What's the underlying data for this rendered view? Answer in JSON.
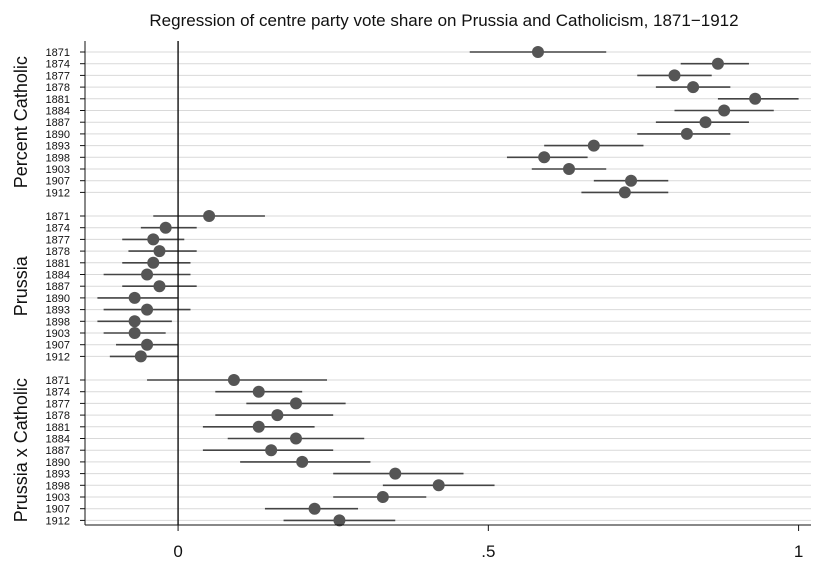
{
  "chart_data": {
    "type": "scatter",
    "subtype": "coefficient-plot-with-confidence-intervals",
    "title": "Regression of centre party vote share on Prussia and Catholicism, 1871−1912",
    "xlabel": "",
    "ylabel": "",
    "xlim": [
      -0.15,
      1.02
    ],
    "xticks": [
      0,
      0.5,
      1
    ],
    "xtick_labels": [
      "0",
      ".5",
      "1"
    ],
    "reference_line": 0,
    "grid": "horizontal",
    "colors": {
      "marker": "#555555",
      "ci_line": "#444444",
      "grid": "#d9d9d9",
      "axis": "#111111"
    },
    "years": [
      "1871",
      "1874",
      "1877",
      "1878",
      "1881",
      "1884",
      "1887",
      "1890",
      "1893",
      "1898",
      "1903",
      "1907",
      "1912"
    ],
    "groups": [
      {
        "name": "Percent Catholic",
        "estimates": [
          0.58,
          0.87,
          0.8,
          0.83,
          0.93,
          0.88,
          0.85,
          0.82,
          0.67,
          0.59,
          0.63,
          0.73,
          0.72
        ],
        "ci_low": [
          0.47,
          0.81,
          0.74,
          0.77,
          0.87,
          0.8,
          0.77,
          0.74,
          0.59,
          0.53,
          0.57,
          0.67,
          0.65
        ],
        "ci_high": [
          0.69,
          0.92,
          0.86,
          0.89,
          1.0,
          0.96,
          0.92,
          0.89,
          0.75,
          0.66,
          0.69,
          0.79,
          0.79
        ]
      },
      {
        "name": "Prussia",
        "estimates": [
          0.05,
          -0.02,
          -0.04,
          -0.03,
          -0.04,
          -0.05,
          -0.03,
          -0.07,
          -0.05,
          -0.07,
          -0.07,
          -0.05,
          -0.06
        ],
        "ci_low": [
          -0.04,
          -0.06,
          -0.09,
          -0.08,
          -0.09,
          -0.12,
          -0.09,
          -0.13,
          -0.12,
          -0.13,
          -0.12,
          -0.1,
          -0.11
        ],
        "ci_high": [
          0.14,
          0.03,
          0.01,
          0.03,
          0.02,
          0.02,
          0.03,
          0.0,
          0.02,
          -0.01,
          -0.02,
          0.0,
          0.0
        ]
      },
      {
        "name": "Prussia x Catholic",
        "estimates": [
          0.09,
          0.13,
          0.19,
          0.16,
          0.13,
          0.19,
          0.15,
          0.2,
          0.35,
          0.42,
          0.33,
          0.22,
          0.26
        ],
        "ci_low": [
          -0.05,
          0.06,
          0.11,
          0.06,
          0.04,
          0.08,
          0.04,
          0.1,
          0.25,
          0.33,
          0.25,
          0.14,
          0.17
        ],
        "ci_high": [
          0.24,
          0.2,
          0.27,
          0.25,
          0.22,
          0.3,
          0.25,
          0.31,
          0.46,
          0.51,
          0.4,
          0.29,
          0.35
        ]
      }
    ]
  }
}
